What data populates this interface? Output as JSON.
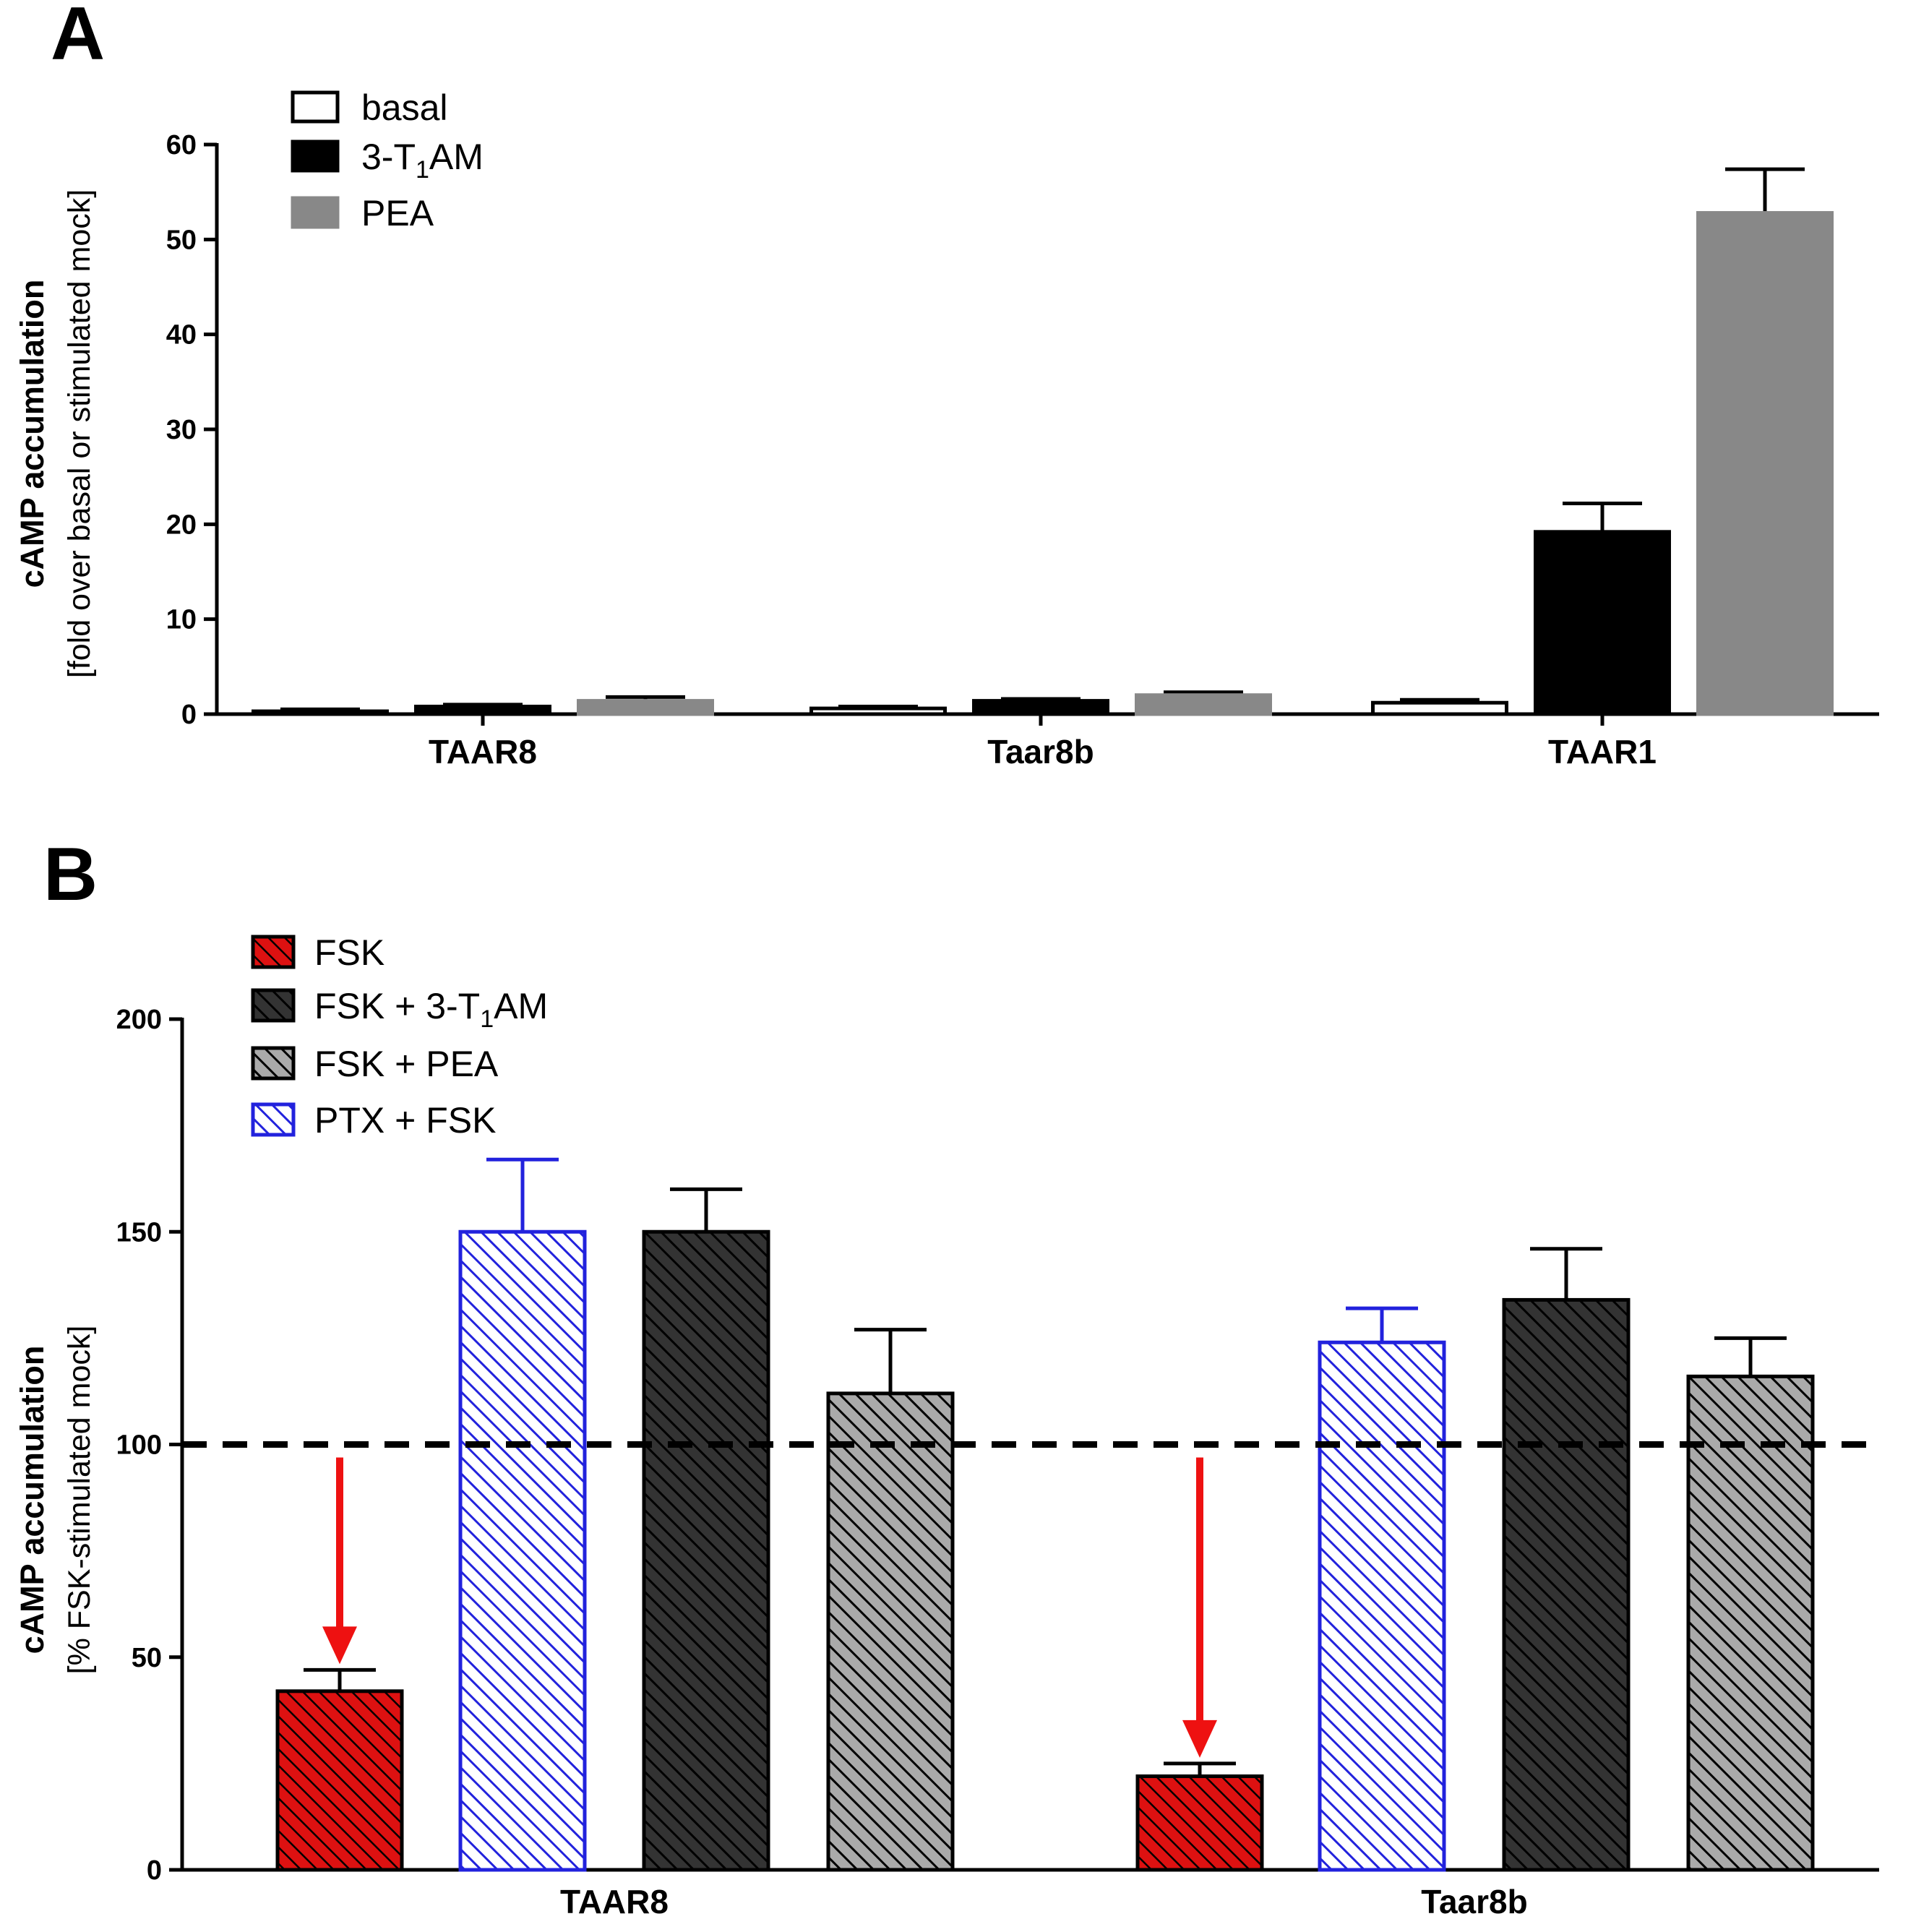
{
  "panels": [
    {
      "letter": "A",
      "chart_data": {
        "type": "bar",
        "title": "",
        "ylabel": "cAMP accumulation",
        "ylabel_sub": "[fold over basal or stimulated mock]",
        "ylim": [
          0,
          60
        ],
        "yticks": [
          0,
          10,
          20,
          30,
          40,
          50,
          60
        ],
        "categories": [
          "TAAR8",
          "Taar8b",
          "TAAR1"
        ],
        "legend_position": "top-left",
        "series": [
          {
            "name": "basal",
            "fill": "#ffffff",
            "values": [
              0.3,
              0.6,
              1.2
            ],
            "errors": [
              0.2,
              0.2,
              0.3
            ]
          },
          {
            "name": "3-T1AM",
            "name_parts": [
              "3-T",
              "1",
              "AM"
            ],
            "fill": "#000000",
            "values": [
              0.8,
              1.4,
              19.2
            ],
            "errors": [
              0.2,
              0.2,
              3.0
            ]
          },
          {
            "name": "PEA",
            "fill": "#888888",
            "values": [
              1.4,
              2.0,
              52.8
            ],
            "errors": [
              0.4,
              0.3,
              4.6
            ]
          }
        ]
      }
    },
    {
      "letter": "B",
      "chart_data": {
        "type": "bar",
        "title": "",
        "ylabel": "cAMP accumulation",
        "ylabel_sub": "[% FSK-stimulated mock]",
        "ylim": [
          0,
          200
        ],
        "yticks": [
          0,
          50,
          100,
          150,
          200
        ],
        "categories": [
          "TAAR8",
          "Taar8b"
        ],
        "reference_line": 100,
        "legend_position": "top-left",
        "series": [
          {
            "name": "FSK",
            "color": "#dd1111",
            "values": [
              42,
              22
            ],
            "errors": [
              5,
              3
            ]
          },
          {
            "name": "PTX + FSK",
            "color": "#2222dd",
            "values": [
              150,
              124
            ],
            "errors": [
              17,
              8
            ]
          },
          {
            "name": "FSK + 3-T1AM",
            "name_parts": [
              "FSK + 3-T",
              "1",
              "AM"
            ],
            "color": "#333333",
            "values": [
              150,
              134
            ],
            "errors": [
              10,
              12
            ]
          },
          {
            "name": "FSK + PEA",
            "color": "#999999",
            "values": [
              112,
              116
            ],
            "errors": [
              15,
              9
            ]
          }
        ],
        "legend_order": [
          "FSK",
          "FSK + 3-T1AM",
          "FSK + PEA",
          "PTX + FSK"
        ],
        "arrow_color": "#ee1111"
      }
    }
  ]
}
